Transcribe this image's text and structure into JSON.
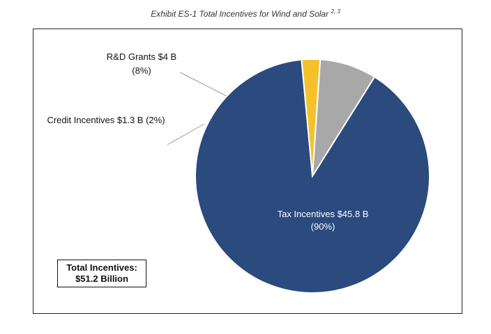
{
  "caption": {
    "text": "Exhibit ES-1 Total Incentives for Wind and Solar",
    "superscript": "2, 3"
  },
  "chart_data": {
    "type": "pie",
    "unit": "$ billion",
    "slices": [
      {
        "name": "Tax Incentives",
        "value": 45.8,
        "percent": 90,
        "color": "#2b4a7e",
        "label_line1": "Tax Incentives $45.8 B",
        "label_line2": "(90%)"
      },
      {
        "name": "Credit Incentives",
        "value": 1.3,
        "percent": 2,
        "color": "#f5c12b",
        "label_line1": "Credit Incentives $1.3 B (2%)",
        "label_line2": ""
      },
      {
        "name": "R&D Grants",
        "value": 4,
        "percent": 8,
        "color": "#a8a8a8",
        "label_line1": "R&D Grants $4 B",
        "label_line2": "(8%)"
      }
    ],
    "total_label_line1": "Total Incentives:",
    "total_label_line2": "$51.2 Billion"
  }
}
